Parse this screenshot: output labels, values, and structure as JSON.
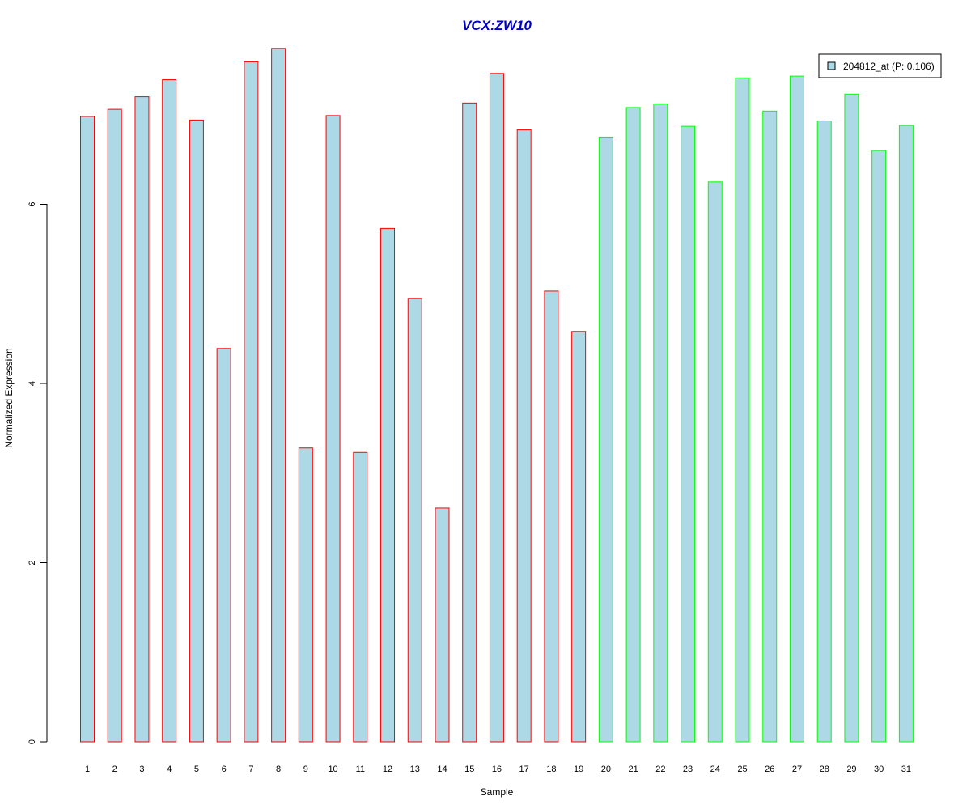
{
  "chart_data": {
    "type": "bar",
    "title": "VCX:ZW10",
    "title_color": "#0000CC",
    "xlabel": "Sample",
    "ylabel": "Normalized Expression",
    "ylim": [
      0,
      7.8
    ],
    "yticks": [
      0,
      2,
      4,
      6
    ],
    "grid": false,
    "legend_position": "top-right",
    "bar_fill": "#ADD8E6",
    "group_colors": {
      "group1": "#FF0000",
      "group2": "#00FF00"
    },
    "categories": [
      "1",
      "2",
      "3",
      "4",
      "5",
      "6",
      "7",
      "8",
      "9",
      "10",
      "11",
      "12",
      "13",
      "14",
      "15",
      "16",
      "17",
      "18",
      "19",
      "20",
      "21",
      "22",
      "23",
      "24",
      "25",
      "26",
      "27",
      "28",
      "29",
      "30",
      "31"
    ],
    "groups": [
      "group1",
      "group1",
      "group1",
      "group1",
      "group1",
      "group1",
      "group1",
      "group1",
      "group1",
      "group1",
      "group1",
      "group1",
      "group1",
      "group1",
      "group1",
      "group1",
      "group1",
      "group1",
      "group1",
      "group2",
      "group2",
      "group2",
      "group2",
      "group2",
      "group2",
      "group2",
      "group2",
      "group2",
      "group2",
      "group2",
      "group2"
    ],
    "series": [
      {
        "name": "204812_at (P: 0.106)",
        "values": [
          6.98,
          7.06,
          7.2,
          7.39,
          6.94,
          4.39,
          7.59,
          7.74,
          3.28,
          6.99,
          3.23,
          5.73,
          4.95,
          2.61,
          7.13,
          7.46,
          6.83,
          5.03,
          4.58,
          6.75,
          7.08,
          7.12,
          6.87,
          6.25,
          7.41,
          7.04,
          7.43,
          6.93,
          7.23,
          6.6,
          6.88
        ]
      }
    ]
  }
}
